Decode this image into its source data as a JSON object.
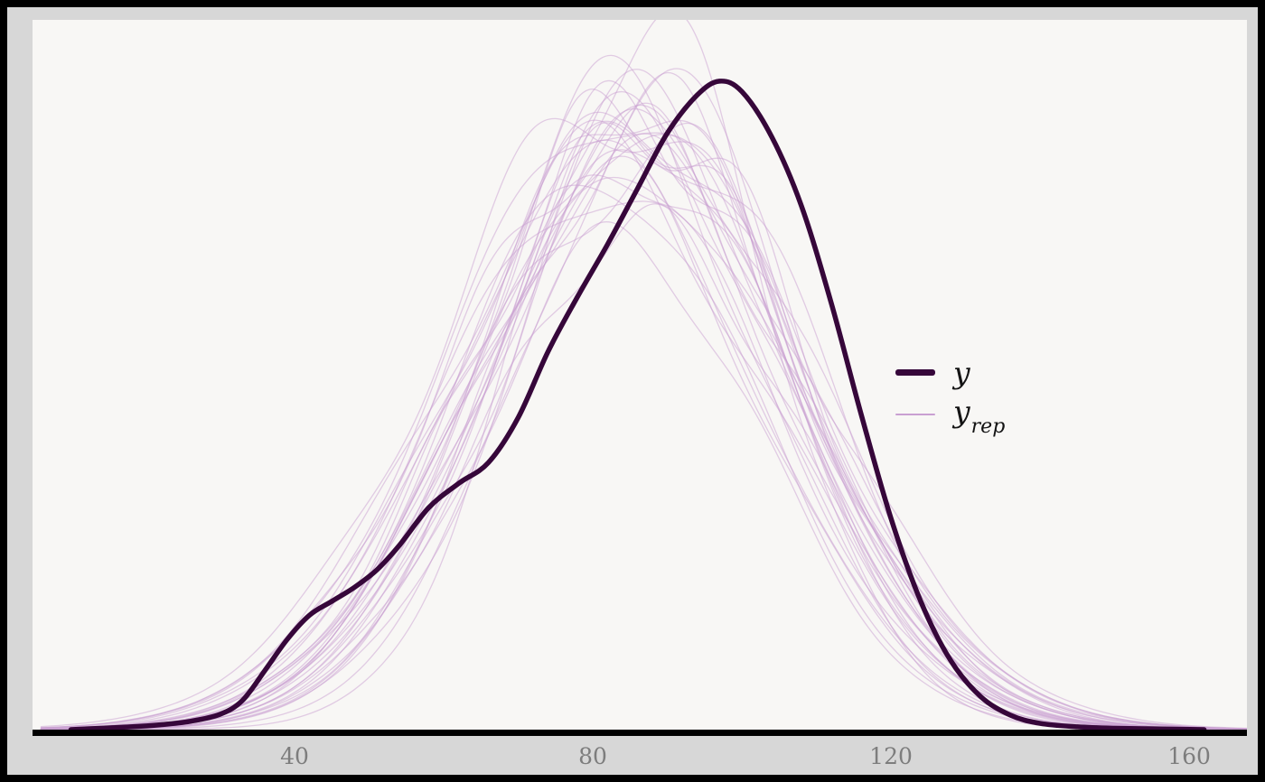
{
  "figure": {
    "outer_background": "#d7d7d7",
    "panel_background": "#f8f7f5",
    "frame_color": "#000000",
    "axis_color": "#000000",
    "tick_label_color": "#7d7d7d"
  },
  "legend": {
    "items": [
      {
        "label": "y",
        "sub": "",
        "color": "#36073a",
        "weight": "thick"
      },
      {
        "label": "y",
        "sub": "rep",
        "color": "#c9a0d2",
        "weight": "thin"
      }
    ]
  },
  "chart_data": {
    "type": "line",
    "subtype": "density_overlay_posterior_predictive_check",
    "title": "",
    "xlabel": "",
    "ylabel": "",
    "grid": false,
    "legend_position": "right-center",
    "x_ticks": [
      40,
      80,
      120,
      160
    ],
    "x_range": [
      4.85,
      167.75
    ],
    "y_range": [
      0,
      1.03
    ],
    "series": [
      {
        "name": "y",
        "role": "observed-density",
        "color": "#36073a",
        "line_width": 5.5,
        "points": [
          [
            10,
            0.0
          ],
          [
            14,
            0.002
          ],
          [
            18,
            0.004
          ],
          [
            22,
            0.007
          ],
          [
            26,
            0.012
          ],
          [
            30,
            0.022
          ],
          [
            33,
            0.042
          ],
          [
            36,
            0.085
          ],
          [
            39,
            0.13
          ],
          [
            42,
            0.165
          ],
          [
            45,
            0.185
          ],
          [
            48,
            0.205
          ],
          [
            51,
            0.23
          ],
          [
            54,
            0.265
          ],
          [
            58,
            0.32
          ],
          [
            62,
            0.355
          ],
          [
            66,
            0.385
          ],
          [
            70,
            0.45
          ],
          [
            74,
            0.545
          ],
          [
            78,
            0.625
          ],
          [
            82,
            0.7
          ],
          [
            86,
            0.78
          ],
          [
            90,
            0.86
          ],
          [
            94,
            0.915
          ],
          [
            97,
            0.935
          ],
          [
            100,
            0.92
          ],
          [
            104,
            0.855
          ],
          [
            108,
            0.755
          ],
          [
            112,
            0.615
          ],
          [
            116,
            0.455
          ],
          [
            120,
            0.305
          ],
          [
            124,
            0.185
          ],
          [
            128,
            0.1
          ],
          [
            132,
            0.048
          ],
          [
            136,
            0.021
          ],
          [
            140,
            0.009
          ],
          [
            145,
            0.004
          ],
          [
            150,
            0.002
          ],
          [
            156,
            0.001
          ],
          [
            162,
            0.0
          ]
        ]
      },
      {
        "name": "y_rep",
        "role": "replicated-densities",
        "color": "#c9a0d2",
        "line_width": 1.3,
        "opacity": 0.5,
        "n_curves": 30,
        "seed": 20240717,
        "mean_range": [
          81,
          90
        ],
        "sd_range": [
          18.5,
          23.5
        ],
        "peak_range": [
          0.7,
          0.92
        ],
        "x_span": [
          6,
          168
        ],
        "tall_curve": {
          "index": 7,
          "mean": 87.5,
          "sd": 16.5,
          "peak": 1.01
        }
      }
    ]
  }
}
